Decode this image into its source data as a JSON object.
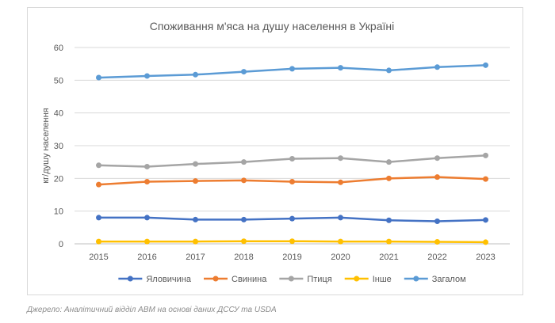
{
  "chart_data": {
    "type": "line",
    "title": "Споживання м'яса на душу населення в Україні",
    "xlabel": "",
    "ylabel": "кг/душу населення",
    "x": [
      "2015",
      "2016",
      "2017",
      "2018",
      "2019",
      "2020",
      "2021",
      "2022",
      "2023"
    ],
    "ylim": [
      0,
      60
    ],
    "yticks": [
      "0",
      "10",
      "20",
      "30",
      "40",
      "50",
      "60"
    ],
    "grid": true,
    "legend_position": "bottom",
    "series": [
      {
        "name": "Яловичина",
        "color": "#4472c4",
        "values": [
          8.0,
          8.0,
          7.4,
          7.4,
          7.7,
          8.0,
          7.2,
          6.9,
          7.3
        ]
      },
      {
        "name": "Свинина",
        "color": "#ed7d31",
        "values": [
          18.1,
          19.0,
          19.2,
          19.4,
          19.0,
          18.8,
          20.0,
          20.4,
          19.8
        ]
      },
      {
        "name": "Птиця",
        "color": "#a5a5a5",
        "values": [
          24.0,
          23.6,
          24.4,
          25.0,
          26.0,
          26.2,
          25.0,
          26.2,
          27.0
        ]
      },
      {
        "name": "Інше",
        "color": "#ffc000",
        "values": [
          0.7,
          0.7,
          0.7,
          0.8,
          0.8,
          0.7,
          0.7,
          0.6,
          0.5
        ]
      },
      {
        "name": "Загалом",
        "color": "#5b9bd5",
        "values": [
          50.8,
          51.3,
          51.7,
          52.6,
          53.5,
          53.8,
          53.0,
          54.0,
          54.6
        ]
      }
    ]
  },
  "source_note": "Джерело: Аналітичний відділ АВМ на основі даних ДССУ та USDA"
}
